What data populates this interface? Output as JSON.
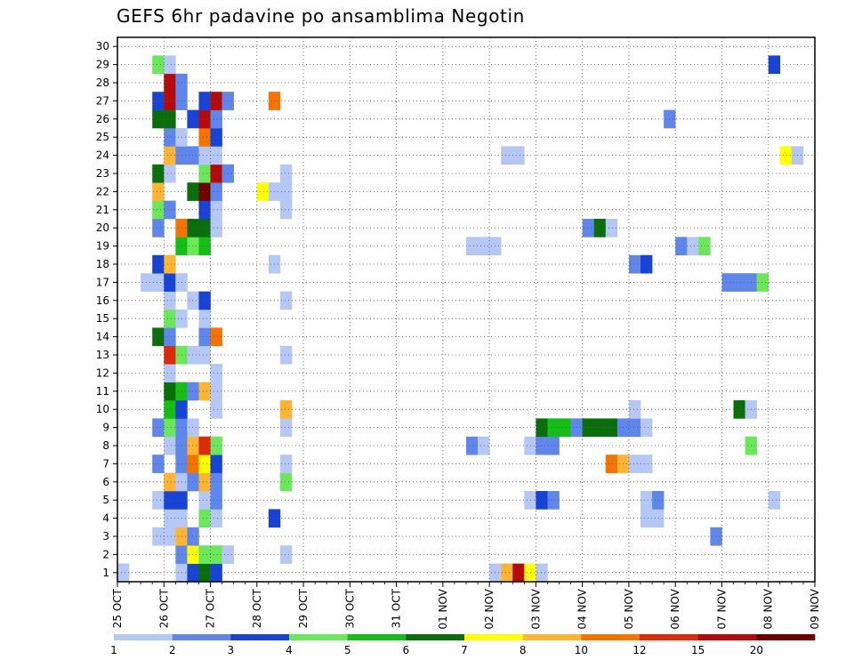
{
  "chart_data": {
    "type": "heatmap",
    "title": "GEFS 6hr padavine po ansamblima Negotin",
    "xlabel": "",
    "ylabel": "",
    "x_tick_labels": [
      "25 OCT",
      "26 OCT",
      "27 OCT",
      "28 OCT",
      "29 OCT",
      "30 OCT",
      "31 OCT",
      "01 NOV",
      "02 NOV",
      "03 NOV",
      "04 NOV",
      "05 NOV",
      "06 NOV",
      "07 NOV",
      "08 NOV",
      "09 NOV"
    ],
    "x_range_steps": [
      0,
      60
    ],
    "y_tick_labels": [
      "1",
      "2",
      "3",
      "4",
      "5",
      "6",
      "7",
      "8",
      "9",
      "10",
      "11",
      "12",
      "13",
      "14",
      "15",
      "16",
      "17",
      "18",
      "19",
      "20",
      "21",
      "22",
      "23",
      "24",
      "25",
      "26",
      "27",
      "28",
      "29",
      "30"
    ],
    "y_range": [
      0.5,
      30.5
    ],
    "step_hours": 6,
    "grid": true,
    "colorbar": {
      "labels": [
        "1",
        "2",
        "3",
        "4",
        "5",
        "6",
        "7",
        "8",
        "10",
        "12",
        "15",
        "20"
      ],
      "colors": [
        "#b4c7f5",
        "#5f87eb",
        "#1743d6",
        "#6ae85a",
        "#14be14",
        "#0a6e0a",
        "#ffff00",
        "#ffb432",
        "#f57300",
        "#e0280a",
        "#b40a0a",
        "#6e0000"
      ]
    },
    "cells": [
      [
        1,
        0,
        1
      ],
      [
        1,
        5,
        1
      ],
      [
        1,
        6,
        3
      ],
      [
        1,
        7,
        6
      ],
      [
        1,
        8,
        3
      ],
      [
        1,
        32,
        1
      ],
      [
        1,
        33,
        8
      ],
      [
        1,
        34,
        11
      ],
      [
        1,
        35,
        7
      ],
      [
        1,
        36,
        1
      ],
      [
        2,
        5,
        2
      ],
      [
        2,
        6,
        7
      ],
      [
        2,
        7,
        4
      ],
      [
        2,
        8,
        4
      ],
      [
        2,
        9,
        1
      ],
      [
        2,
        14,
        1
      ],
      [
        3,
        3,
        1
      ],
      [
        3,
        4,
        1
      ],
      [
        3,
        5,
        8
      ],
      [
        3,
        6,
        2
      ],
      [
        3,
        51,
        2
      ],
      [
        4,
        4,
        1
      ],
      [
        4,
        5,
        1
      ],
      [
        4,
        7,
        4
      ],
      [
        4,
        8,
        1
      ],
      [
        4,
        13,
        3
      ],
      [
        4,
        45,
        1
      ],
      [
        4,
        46,
        1
      ],
      [
        5,
        3,
        1
      ],
      [
        5,
        4,
        3
      ],
      [
        5,
        5,
        3
      ],
      [
        5,
        7,
        1
      ],
      [
        5,
        8,
        2
      ],
      [
        5,
        35,
        1
      ],
      [
        5,
        36,
        3
      ],
      [
        5,
        37,
        2
      ],
      [
        5,
        45,
        1
      ],
      [
        5,
        46,
        2
      ],
      [
        5,
        56,
        1
      ],
      [
        6,
        4,
        8
      ],
      [
        6,
        5,
        1
      ],
      [
        6,
        6,
        2
      ],
      [
        6,
        7,
        8
      ],
      [
        6,
        8,
        2
      ],
      [
        6,
        14,
        4
      ],
      [
        7,
        3,
        2
      ],
      [
        7,
        5,
        2
      ],
      [
        7,
        6,
        9
      ],
      [
        7,
        7,
        7
      ],
      [
        7,
        8,
        3
      ],
      [
        7,
        14,
        1
      ],
      [
        7,
        42,
        9
      ],
      [
        7,
        43,
        8
      ],
      [
        7,
        44,
        1
      ],
      [
        7,
        45,
        1
      ],
      [
        8,
        4,
        1
      ],
      [
        8,
        5,
        2
      ],
      [
        8,
        6,
        8
      ],
      [
        8,
        7,
        10
      ],
      [
        8,
        8,
        4
      ],
      [
        8,
        30,
        2
      ],
      [
        8,
        31,
        1
      ],
      [
        8,
        35,
        1
      ],
      [
        8,
        36,
        2
      ],
      [
        8,
        37,
        2
      ],
      [
        8,
        54,
        4
      ],
      [
        9,
        3,
        2
      ],
      [
        9,
        4,
        4
      ],
      [
        9,
        5,
        2
      ],
      [
        9,
        6,
        1
      ],
      [
        9,
        14,
        1
      ],
      [
        9,
        36,
        6
      ],
      [
        9,
        37,
        5
      ],
      [
        9,
        38,
        5
      ],
      [
        9,
        39,
        2
      ],
      [
        9,
        40,
        6
      ],
      [
        9,
        41,
        6
      ],
      [
        9,
        42,
        6
      ],
      [
        9,
        43,
        2
      ],
      [
        9,
        44,
        2
      ],
      [
        9,
        45,
        1
      ],
      [
        10,
        4,
        5
      ],
      [
        10,
        5,
        3
      ],
      [
        10,
        8,
        1
      ],
      [
        10,
        14,
        8
      ],
      [
        10,
        44,
        1
      ],
      [
        10,
        53,
        6
      ],
      [
        10,
        54,
        1
      ],
      [
        11,
        4,
        6
      ],
      [
        11,
        5,
        5
      ],
      [
        11,
        6,
        2
      ],
      [
        11,
        7,
        8
      ],
      [
        11,
        8,
        1
      ],
      [
        12,
        4,
        1
      ],
      [
        12,
        8,
        1
      ],
      [
        13,
        4,
        10
      ],
      [
        13,
        5,
        4
      ],
      [
        13,
        6,
        1
      ],
      [
        13,
        7,
        1
      ],
      [
        13,
        14,
        1
      ],
      [
        14,
        3,
        6
      ],
      [
        14,
        4,
        2
      ],
      [
        14,
        7,
        2
      ],
      [
        14,
        8,
        9
      ],
      [
        15,
        4,
        4
      ],
      [
        15,
        5,
        1
      ],
      [
        15,
        7,
        1
      ],
      [
        16,
        4,
        1
      ],
      [
        16,
        6,
        1
      ],
      [
        16,
        7,
        3
      ],
      [
        16,
        14,
        1
      ],
      [
        17,
        2,
        1
      ],
      [
        17,
        3,
        1
      ],
      [
        17,
        4,
        3
      ],
      [
        17,
        5,
        1
      ],
      [
        17,
        52,
        2
      ],
      [
        17,
        53,
        2
      ],
      [
        17,
        54,
        2
      ],
      [
        17,
        55,
        4
      ],
      [
        18,
        3,
        3
      ],
      [
        18,
        4,
        8
      ],
      [
        18,
        13,
        1
      ],
      [
        18,
        44,
        2
      ],
      [
        18,
        45,
        3
      ],
      [
        19,
        5,
        5
      ],
      [
        19,
        6,
        4
      ],
      [
        19,
        7,
        5
      ],
      [
        19,
        30,
        1
      ],
      [
        19,
        31,
        1
      ],
      [
        19,
        32,
        1
      ],
      [
        19,
        48,
        2
      ],
      [
        19,
        49,
        1
      ],
      [
        19,
        50,
        4
      ],
      [
        19,
        60,
        2
      ],
      [
        20,
        3,
        2
      ],
      [
        20,
        5,
        9
      ],
      [
        20,
        6,
        6
      ],
      [
        20,
        7,
        6
      ],
      [
        20,
        8,
        1
      ],
      [
        20,
        40,
        2
      ],
      [
        20,
        41,
        6
      ],
      [
        20,
        42,
        1
      ],
      [
        21,
        3,
        4
      ],
      [
        21,
        4,
        2
      ],
      [
        21,
        7,
        3
      ],
      [
        21,
        8,
        1
      ],
      [
        21,
        14,
        1
      ],
      [
        22,
        3,
        8
      ],
      [
        22,
        6,
        6
      ],
      [
        22,
        7,
        12
      ],
      [
        22,
        8,
        2
      ],
      [
        22,
        12,
        7
      ],
      [
        22,
        13,
        1
      ],
      [
        22,
        14,
        1
      ],
      [
        23,
        3,
        6
      ],
      [
        23,
        4,
        1
      ],
      [
        23,
        7,
        4
      ],
      [
        23,
        8,
        11
      ],
      [
        23,
        9,
        2
      ],
      [
        23,
        14,
        1
      ],
      [
        24,
        4,
        8
      ],
      [
        24,
        5,
        2
      ],
      [
        24,
        6,
        2
      ],
      [
        24,
        7,
        1
      ],
      [
        24,
        8,
        1
      ],
      [
        24,
        33,
        1
      ],
      [
        24,
        34,
        1
      ],
      [
        24,
        57,
        7
      ],
      [
        24,
        58,
        1
      ],
      [
        25,
        4,
        2
      ],
      [
        25,
        5,
        1
      ],
      [
        25,
        7,
        9
      ],
      [
        25,
        8,
        3
      ],
      [
        26,
        4,
        6
      ],
      [
        26,
        3,
        6
      ],
      [
        26,
        6,
        3
      ],
      [
        26,
        7,
        11
      ],
      [
        26,
        8,
        2
      ],
      [
        26,
        47,
        2
      ],
      [
        27,
        3,
        3
      ],
      [
        27,
        4,
        11
      ],
      [
        27,
        5,
        2
      ],
      [
        27,
        7,
        3
      ],
      [
        27,
        8,
        11
      ],
      [
        27,
        9,
        2
      ],
      [
        27,
        13,
        9
      ],
      [
        28,
        4,
        11
      ],
      [
        28,
        5,
        2
      ],
      [
        29,
        3,
        4
      ],
      [
        29,
        4,
        1
      ],
      [
        29,
        56,
        3
      ]
    ]
  }
}
